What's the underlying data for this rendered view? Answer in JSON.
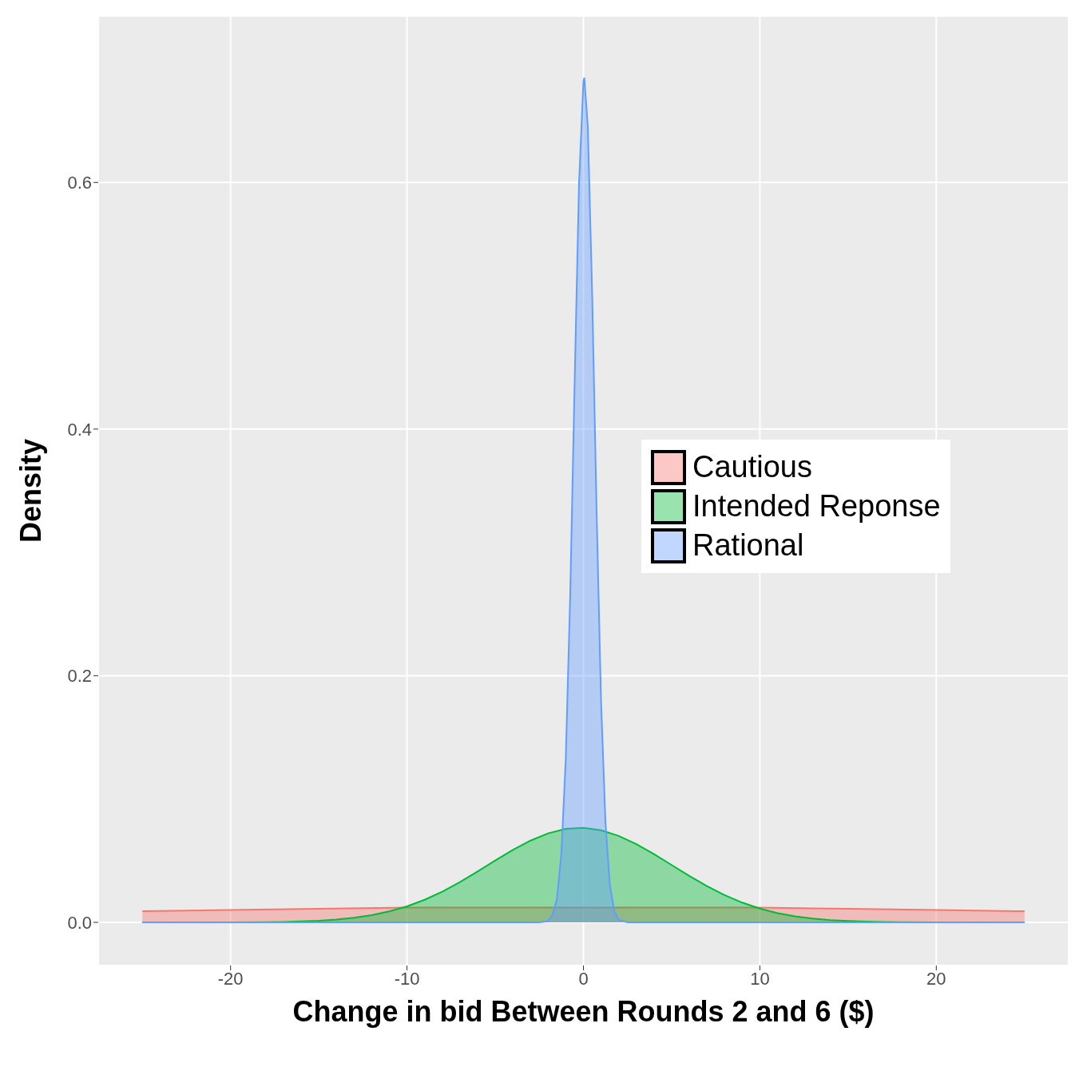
{
  "chart_data": {
    "type": "area",
    "xlabel": "Change in bid Between Rounds 2 and 6 ($)",
    "ylabel": "Density",
    "xlim": [
      -27.5,
      27.5
    ],
    "xticks": [
      -20,
      -10,
      0,
      10,
      20
    ],
    "ylim": [
      -0.035,
      0.735
    ],
    "yticks": [
      {
        "value": 0,
        "label": "0.0"
      },
      0.2,
      0.4,
      0.6
    ],
    "grid": true,
    "legend": "right",
    "series": [
      {
        "name": "Cautious",
        "color": "#f8766d",
        "x": [
          -25,
          -20,
          -15,
          -10,
          -5,
          0,
          5,
          10,
          15,
          20,
          25
        ],
        "values": [
          0.009,
          0.01,
          0.011,
          0.012,
          0.012,
          0.012,
          0.012,
          0.012,
          0.011,
          0.01,
          0.009
        ]
      },
      {
        "name": "Intended Reponse",
        "color": "#00ba38",
        "x": [
          -25,
          -20,
          -18,
          -17,
          -16,
          -15,
          -14,
          -13,
          -12,
          -11,
          -10,
          -9,
          -8,
          -7,
          -6,
          -5,
          -4,
          -3,
          -2,
          -1,
          0,
          1,
          2,
          3,
          4,
          5,
          6,
          7,
          8,
          9,
          10,
          11,
          12,
          13,
          14,
          15,
          16,
          17,
          18,
          20,
          25
        ],
        "values": [
          0,
          0,
          0.0002,
          0.0004,
          0.0008,
          0.0013,
          0.0023,
          0.0037,
          0.0058,
          0.0089,
          0.013,
          0.0183,
          0.0249,
          0.0326,
          0.0412,
          0.0501,
          0.0587,
          0.0663,
          0.0722,
          0.0758,
          0.0767,
          0.0747,
          0.0701,
          0.0635,
          0.0554,
          0.0465,
          0.0377,
          0.0294,
          0.0221,
          0.016,
          0.0112,
          0.0075,
          0.0049,
          0.0031,
          0.0018,
          0.0011,
          0.0006,
          0.0003,
          0.0001,
          0,
          0
        ]
      },
      {
        "name": "Rational",
        "color": "#619cff",
        "x": [
          -25,
          -3,
          -2.5,
          -2,
          -1.75,
          -1.5,
          -1.25,
          -1,
          -0.75,
          -0.5,
          -0.25,
          0,
          0.05,
          0.25,
          0.5,
          0.75,
          1,
          1.25,
          1.5,
          1.75,
          2,
          2.5,
          3,
          25
        ],
        "values": [
          0,
          0,
          0,
          0.001,
          0.006,
          0.019,
          0.056,
          0.133,
          0.265,
          0.437,
          0.599,
          0.682,
          0.685,
          0.645,
          0.507,
          0.331,
          0.179,
          0.081,
          0.03,
          0.009,
          0.002,
          0,
          0,
          0
        ]
      }
    ]
  }
}
